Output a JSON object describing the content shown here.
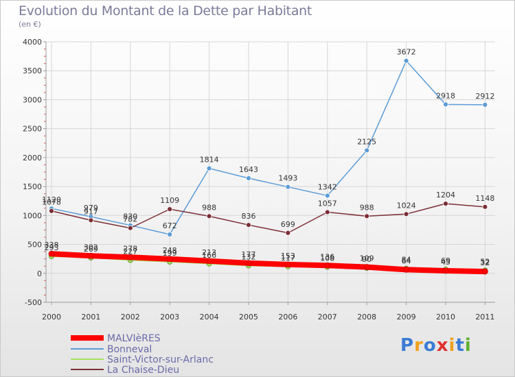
{
  "chart_data": {
    "type": "line",
    "title": "Evolution du Montant de la Dette par Habitant",
    "subtitle": "(en €)",
    "x": [
      "2000",
      "2001",
      "2002",
      "2003",
      "2004",
      "2005",
      "2006",
      "2007",
      "2008",
      "2009",
      "2010",
      "2011"
    ],
    "yticks": [
      "-500",
      "0",
      "500",
      "1000",
      "1500",
      "2000",
      "2500",
      "3000",
      "3500",
      "4000"
    ],
    "ylim": [
      -500,
      4000
    ],
    "grid": true,
    "legend_position": "bottom-left",
    "series": [
      {
        "name": "MALVIèRES",
        "color": "#ff0000",
        "values": [
          338,
          302,
          278,
          248,
          213,
          177,
          153,
          136,
          109,
          64,
          45,
          32
        ],
        "labels": [
          "338",
          "302",
          "278",
          "248",
          "213",
          "177",
          "153",
          "136",
          "109",
          "64",
          "45",
          "32"
        ]
      },
      {
        "name": "Bonneval",
        "color": "#5b9bd5",
        "values": [
          1120,
          979,
          830,
          672,
          1814,
          1643,
          1493,
          1342,
          2125,
          3672,
          2918,
          2912
        ],
        "labels": [
          "1120",
          "979",
          "830",
          "672",
          "1814",
          "1643",
          "1493",
          "1342",
          "2125",
          "3672",
          "2918",
          "2912"
        ]
      },
      {
        "name": "Saint-Victor-sur-Arlanc",
        "color": "#a8e05f",
        "values": [
          293,
          269,
          227,
          199,
          166,
          132,
          117,
          108,
          90,
          84,
          69,
          52
        ],
        "labels": [
          "293",
          "269",
          "227",
          "199",
          "166",
          "132",
          "117",
          "108",
          "90",
          "84",
          "69",
          "52"
        ]
      },
      {
        "name": "La Chaise-Dieu",
        "color": "#7b2d34",
        "values": [
          1078,
          917,
          782,
          1109,
          988,
          836,
          699,
          1057,
          988,
          1024,
          1204,
          1148
        ],
        "labels": [
          "1078",
          "917",
          "782",
          "1109",
          "988",
          "836",
          "699",
          "1057",
          "988",
          "1024",
          "1204",
          "1148"
        ]
      }
    ]
  },
  "logo": {
    "letters": [
      "P",
      "r",
      "o",
      "x",
      "i",
      "t",
      "i"
    ],
    "colors": [
      "#3a7bd5",
      "#f0a020",
      "#3a7bd5",
      "#e03030",
      "#f0a020",
      "#3a7bd5",
      "#60b030"
    ]
  }
}
